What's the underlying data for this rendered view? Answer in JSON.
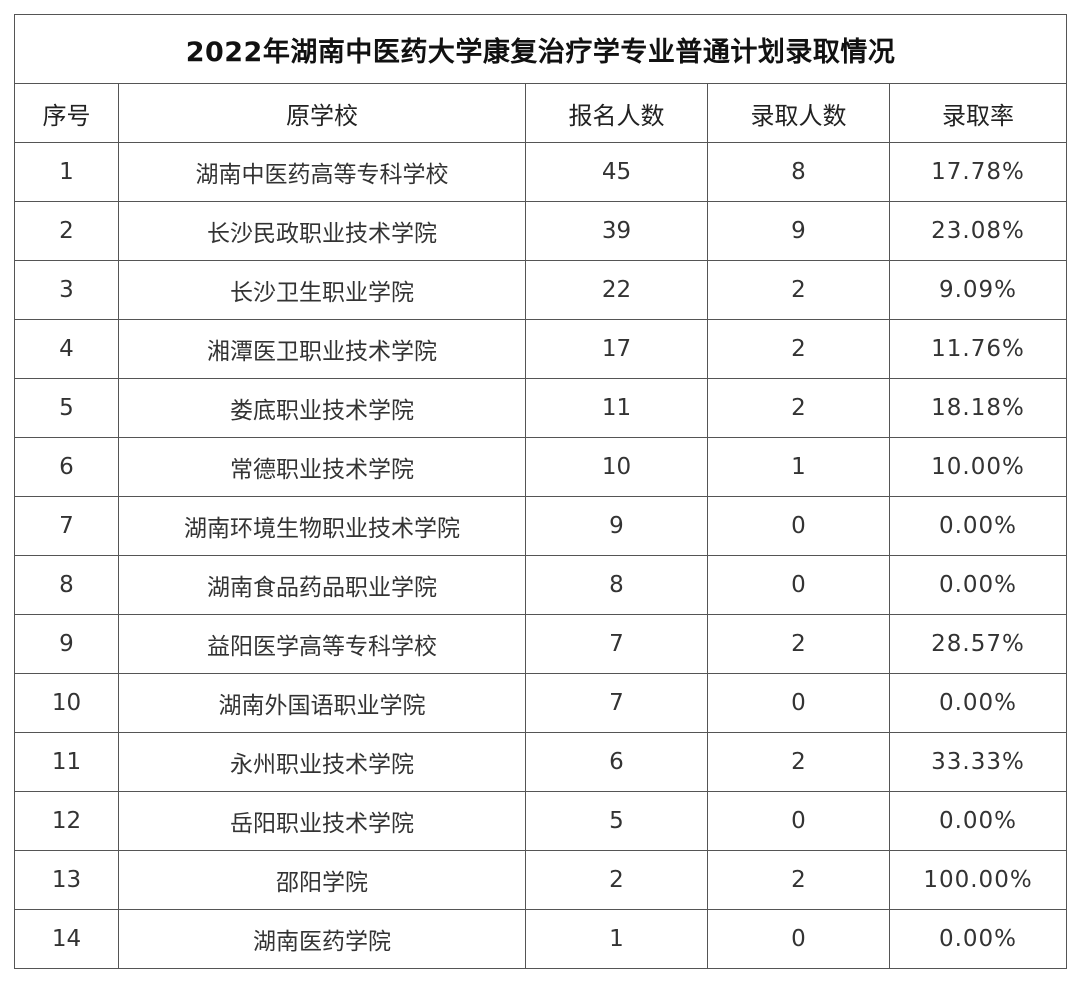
{
  "title": "2022年湖南中医药大学康复治疗学专业普通计划录取情况",
  "headers": {
    "no": "序号",
    "school": "原学校",
    "registered": "报名人数",
    "admitted": "录取人数",
    "rate": "录取率"
  },
  "rows": [
    {
      "no": "1",
      "school": "湖南中医药高等专科学校",
      "registered": "45",
      "admitted": "8",
      "rate": "17.78%"
    },
    {
      "no": "2",
      "school": "长沙民政职业技术学院",
      "registered": "39",
      "admitted": "9",
      "rate": "23.08%"
    },
    {
      "no": "3",
      "school": "长沙卫生职业学院",
      "registered": "22",
      "admitted": "2",
      "rate": "9.09%"
    },
    {
      "no": "4",
      "school": "湘潭医卫职业技术学院",
      "registered": "17",
      "admitted": "2",
      "rate": "11.76%"
    },
    {
      "no": "5",
      "school": "娄底职业技术学院",
      "registered": "11",
      "admitted": "2",
      "rate": "18.18%"
    },
    {
      "no": "6",
      "school": "常德职业技术学院",
      "registered": "10",
      "admitted": "1",
      "rate": "10.00%"
    },
    {
      "no": "7",
      "school": "湖南环境生物职业技术学院",
      "registered": "9",
      "admitted": "0",
      "rate": "0.00%"
    },
    {
      "no": "8",
      "school": "湖南食品药品职业学院",
      "registered": "8",
      "admitted": "0",
      "rate": "0.00%"
    },
    {
      "no": "9",
      "school": "益阳医学高等专科学校",
      "registered": "7",
      "admitted": "2",
      "rate": "28.57%"
    },
    {
      "no": "10",
      "school": "湖南外国语职业学院",
      "registered": "7",
      "admitted": "0",
      "rate": "0.00%"
    },
    {
      "no": "11",
      "school": "永州职业技术学院",
      "registered": "6",
      "admitted": "2",
      "rate": "33.33%"
    },
    {
      "no": "12",
      "school": "岳阳职业技术学院",
      "registered": "5",
      "admitted": "0",
      "rate": "0.00%"
    },
    {
      "no": "13",
      "school": "邵阳学院",
      "registered": "2",
      "admitted": "2",
      "rate": "100.00%"
    },
    {
      "no": "14",
      "school": "湖南医药学院",
      "registered": "1",
      "admitted": "0",
      "rate": "0.00%"
    }
  ]
}
